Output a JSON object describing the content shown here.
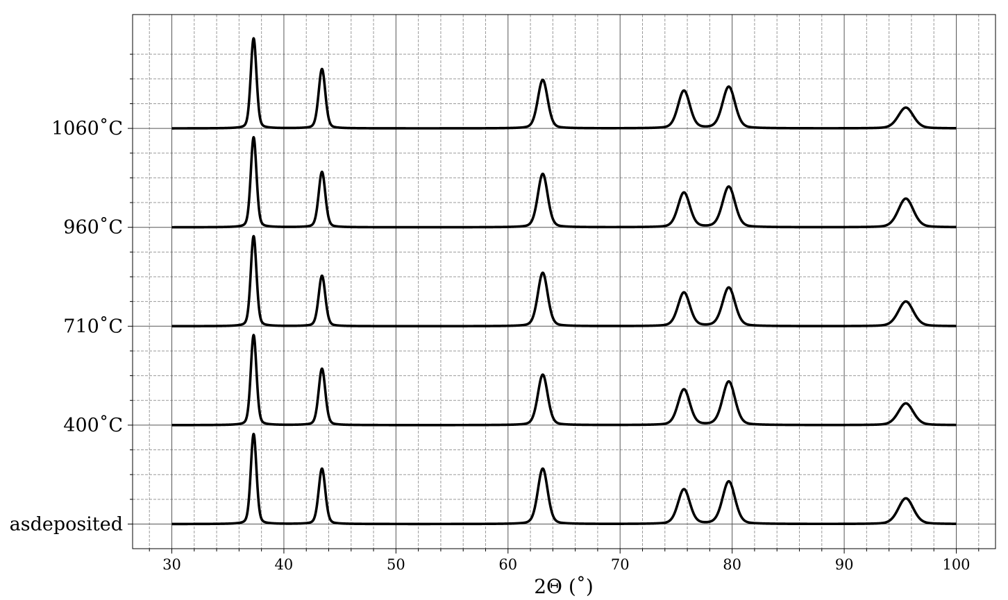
{
  "chart_data": {
    "type": "line",
    "title": "",
    "xlabel": "2Θ (˚)",
    "ylabel": "",
    "xlim": [
      26.5,
      103.5
    ],
    "x_ticks": [
      30,
      40,
      50,
      60,
      70,
      80,
      90,
      100
    ],
    "x_minor_step": 2,
    "y_minor_subdivisions": 4,
    "grid": true,
    "legend": "none",
    "line_color": "#000000",
    "x_range": [
      30,
      100
    ],
    "peak_centers": [
      37.3,
      43.4,
      63.1,
      75.7,
      79.7,
      95.5
    ],
    "y_tick_labels": [
      "asdeposited",
      "400˚C",
      "710˚C",
      "960˚C",
      "1060˚C"
    ],
    "series": [
      {
        "name": "asdeposited",
        "offset": 0,
        "peak_heights": [
          0.91,
          0.56,
          0.56,
          0.35,
          0.43,
          0.26
        ]
      },
      {
        "name": "400˚C",
        "offset": 1,
        "peak_heights": [
          0.91,
          0.57,
          0.51,
          0.36,
          0.44,
          0.22
        ]
      },
      {
        "name": "710˚C",
        "offset": 2,
        "peak_heights": [
          0.91,
          0.51,
          0.54,
          0.34,
          0.39,
          0.25
        ]
      },
      {
        "name": "960˚C",
        "offset": 3,
        "peak_heights": [
          0.91,
          0.56,
          0.54,
          0.35,
          0.41,
          0.29
        ]
      },
      {
        "name": "1060˚C",
        "offset": 4,
        "peak_heights": [
          0.91,
          0.6,
          0.49,
          0.38,
          0.42,
          0.21
        ]
      }
    ]
  }
}
